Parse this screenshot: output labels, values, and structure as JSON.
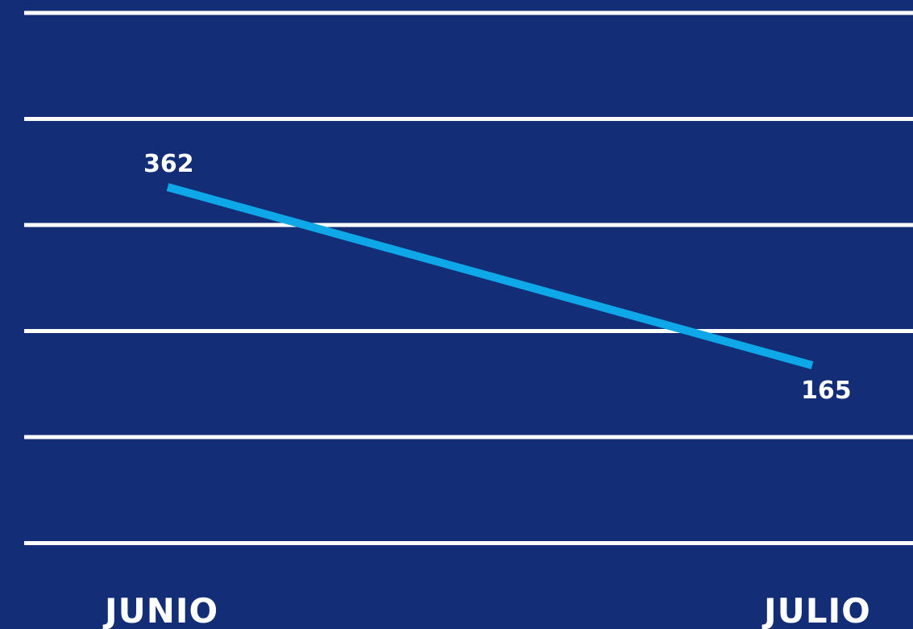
{
  "chart_data": {
    "type": "line",
    "categories": [
      "JUNIO",
      "JULIO"
    ],
    "series": [
      {
        "values": [
          362,
          165
        ]
      }
    ],
    "data_labels": [
      "362",
      "165"
    ],
    "grid": true,
    "gridline_count": 6,
    "ylim": [
      0,
      500
    ],
    "colors": {
      "background": "#132d76",
      "line": "#0ea7e8",
      "grid": "#ffffff",
      "text": "#ffffff"
    }
  }
}
